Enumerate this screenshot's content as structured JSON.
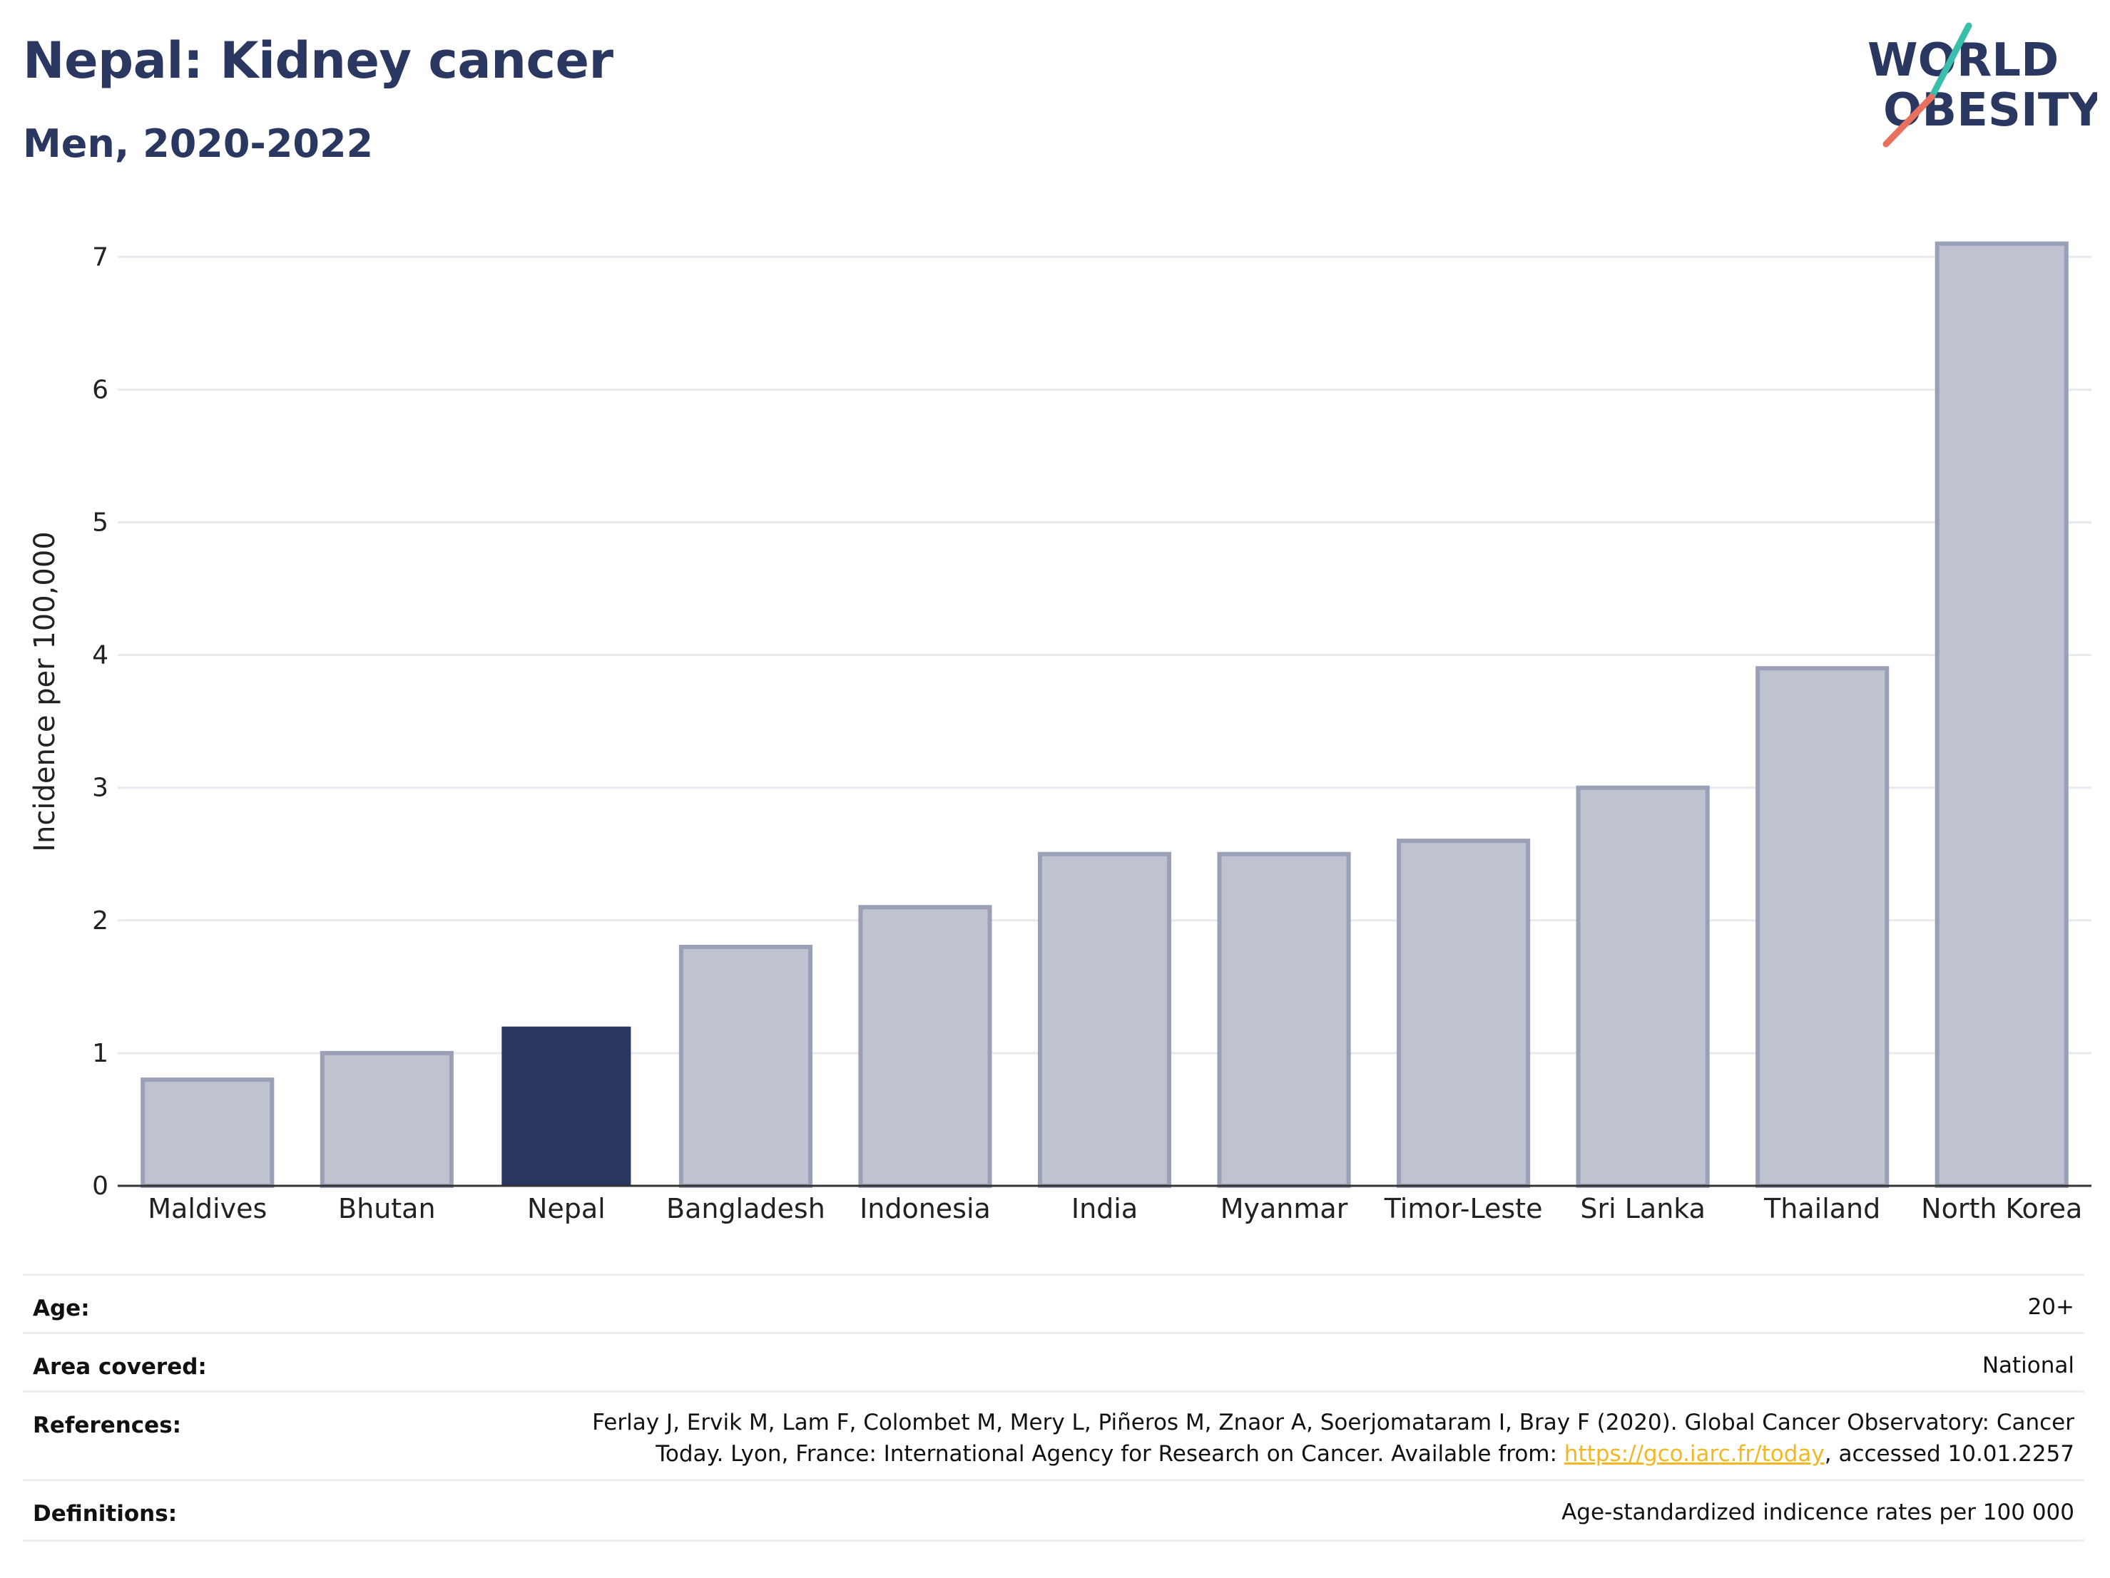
{
  "header": {
    "title": "Nepal: Kidney cancer",
    "subtitle": "Men, 2020-2022"
  },
  "logo": {
    "line1": "WORLD",
    "line2": "OBESITY",
    "accent_teal": "#3bbfad",
    "accent_coral": "#e8705f",
    "text_color": "#2a3761"
  },
  "chart_data": {
    "type": "bar",
    "categories": [
      "Maldives",
      "Bhutan",
      "Nepal",
      "Bangladesh",
      "Indonesia",
      "India",
      "Myanmar",
      "Timor-Leste",
      "Sri Lanka",
      "Thailand",
      "North Korea"
    ],
    "values": [
      0.8,
      1.0,
      1.2,
      1.8,
      2.1,
      2.5,
      2.5,
      2.6,
      3.0,
      3.9,
      7.1
    ],
    "highlight": "Nepal",
    "ylabel": "Incidence per 100,000",
    "ylim": [
      0,
      7.3
    ],
    "yticks": [
      0,
      1,
      2,
      3,
      4,
      5,
      6,
      7
    ],
    "grid": true,
    "colors": {
      "bar": "#bfc3d0",
      "bar_border": "#9aa1b7",
      "highlight": "#2a3761",
      "grid": "#e8e9ee",
      "axis": "#333333"
    }
  },
  "meta": {
    "age_label": "Age:",
    "age_value": "20+",
    "area_label": "Area covered:",
    "area_value": "National",
    "references_label": "References:",
    "references_line1": "Ferlay J, Ervik M, Lam F, Colombet M, Mery L, Piñeros M, Znaor A, Soerjomataram I, Bray F (2020). Global Cancer Observatory: Cancer",
    "references_line2_pre": "Today. Lyon, France: International Agency for Research on Cancer. Available from: ",
    "references_link": "https://gco.iarc.fr/today",
    "references_line2_post": ", accessed 10.01.2257",
    "definitions_label": "Definitions:",
    "definitions_value": "Age-standardized indicence rates per 100 000"
  }
}
